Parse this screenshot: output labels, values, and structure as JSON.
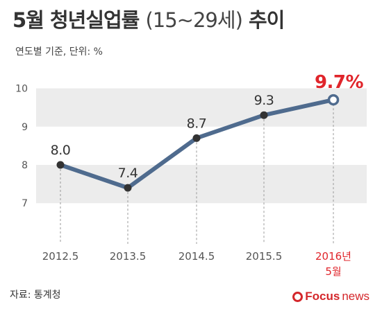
{
  "title": {
    "main": "5월 청년실업률",
    "sub": "(15~29세)",
    "tail": "추이"
  },
  "unit_note": "연도별 기준, 단위: %",
  "source": "자료: 통계청",
  "brand": {
    "name": "Focus",
    "suffix": "news"
  },
  "colors": {
    "line": "#4f6b8e",
    "highlight": "#e0252b",
    "band": "#ececec",
    "axis": "#999999"
  },
  "chart_data": {
    "type": "line",
    "categories": [
      "2012.5",
      "2013.5",
      "2014.5",
      "2015.5",
      "2016년\n5월"
    ],
    "values": [
      8.0,
      7.4,
      8.7,
      9.3,
      9.7
    ],
    "value_labels": [
      "8.0",
      "7.4",
      "8.7",
      "9.3",
      "9.7%"
    ],
    "ylim": [
      6.95,
      10.1
    ],
    "yticks": [
      7,
      8,
      9,
      10
    ],
    "highlight_index": 4
  }
}
